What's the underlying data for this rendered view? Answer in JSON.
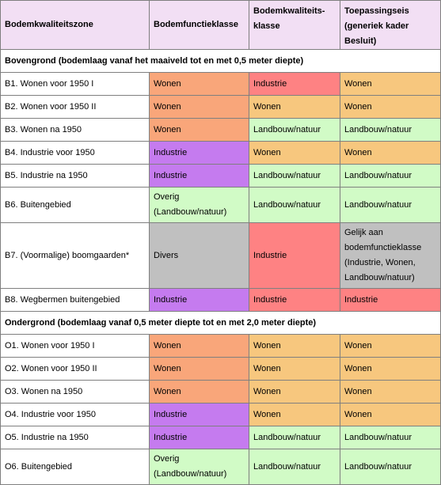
{
  "headers": {
    "zone": "Bodemkwaliteitszone",
    "functieklasse": "Bodemfunctieklasse",
    "kwaliteitsklasse": "Bodemkwaliteits-klasse",
    "toepassingseis": "Toepassingseis (generiek kader Besluit)"
  },
  "sections": [
    {
      "title": "Bovengrond (bodemlaag vanaf het maaiveld tot en met 0,5 meter diepte)",
      "rows": [
        {
          "zone": "B1. Wonen voor 1950 I",
          "functieklasse": "Wonen",
          "kwaliteitsklasse": "Industrie",
          "toepassingseis": "Wonen"
        },
        {
          "zone": "B2. Wonen voor 1950 II",
          "functieklasse": "Wonen",
          "kwaliteitsklasse": "Wonen",
          "toepassingseis": "Wonen"
        },
        {
          "zone": "B3. Wonen na 1950",
          "functieklasse": "Wonen",
          "kwaliteitsklasse": "Landbouw/natuur",
          "toepassingseis": "Landbouw/natuur"
        },
        {
          "zone": "B4. Industrie voor 1950",
          "functieklasse": "Industrie",
          "kwaliteitsklasse": "Wonen",
          "toepassingseis": "Wonen"
        },
        {
          "zone": "B5. Industrie na 1950",
          "functieklasse": "Industrie",
          "kwaliteitsklasse": "Landbouw/natuur",
          "toepassingseis": "Landbouw/natuur"
        },
        {
          "zone": "B6. Buitengebied",
          "functieklasse": "Overig (Landbouw/natuur)",
          "kwaliteitsklasse": "Landbouw/natuur",
          "toepassingseis": "Landbouw/natuur"
        },
        {
          "zone": "B7. (Voormalige) boomgaarden*",
          "functieklasse": "Divers",
          "kwaliteitsklasse": "Industrie",
          "toepassingseis": "Gelijk aan bodemfunctieklasse (Industrie, Wonen, Landbouw/natuur)"
        },
        {
          "zone": "B8. Wegbermen buitengebied",
          "functieklasse": "Industrie",
          "kwaliteitsklasse": "Industrie",
          "toepassingseis": "Industrie"
        }
      ]
    },
    {
      "title": "Ondergrond (bodemlaag vanaf 0,5 meter diepte tot en met 2,0 meter diepte)",
      "rows": [
        {
          "zone": "O1. Wonen voor 1950 I",
          "functieklasse": "Wonen",
          "kwaliteitsklasse": "Wonen",
          "toepassingseis": "Wonen"
        },
        {
          "zone": "O2. Wonen voor 1950 II",
          "functieklasse": "Wonen",
          "kwaliteitsklasse": "Wonen",
          "toepassingseis": "Wonen"
        },
        {
          "zone": "O3. Wonen na 1950",
          "functieklasse": "Wonen",
          "kwaliteitsklasse": "Wonen",
          "toepassingseis": "Wonen"
        },
        {
          "zone": "O4. Industrie voor 1950",
          "functieklasse": "Industrie",
          "kwaliteitsklasse": "Wonen",
          "toepassingseis": "Wonen"
        },
        {
          "zone": "O5. Industrie na 1950",
          "functieklasse": "Industrie",
          "kwaliteitsklasse": "Landbouw/natuur",
          "toepassingseis": "Landbouw/natuur"
        },
        {
          "zone": "O6. Buitengebied",
          "functieklasse": "Overig (Landbouw/natuur)",
          "kwaliteitsklasse": "Landbouw/natuur",
          "toepassingseis": "Landbouw/natuur"
        }
      ]
    }
  ],
  "colors": {
    "header": "#f2dff4",
    "wonen_functie": "#f9a67a",
    "wonen_kwaliteit": "#f7c77e",
    "industrie_functie": "#c57bef",
    "industrie_kwaliteit": "#fe8283",
    "landbouw": "#d1fbc6",
    "divers": "#c0c0c0"
  }
}
